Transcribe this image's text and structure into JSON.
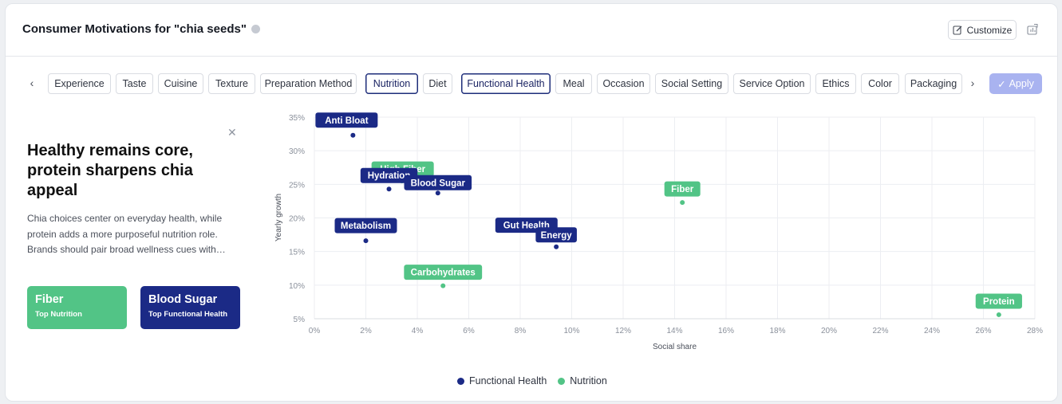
{
  "header": {
    "title": "Consumer Motivations for \"chia seeds\"",
    "customize_label": "Customize"
  },
  "tabs": [
    {
      "label": "Experience",
      "active": false
    },
    {
      "label": "Taste",
      "active": false
    },
    {
      "label": "Cuisine",
      "active": false
    },
    {
      "label": "Texture",
      "active": false
    },
    {
      "label": "Preparation Method",
      "active": false
    },
    {
      "label": "Nutrition",
      "active": true
    },
    {
      "label": "Diet",
      "active": false
    },
    {
      "label": "Functional Health",
      "active": true
    },
    {
      "label": "Meal",
      "active": false
    },
    {
      "label": "Occasion",
      "active": false
    },
    {
      "label": "Social Setting",
      "active": false
    },
    {
      "label": "Service Option",
      "active": false
    },
    {
      "label": "Ethics",
      "active": false
    },
    {
      "label": "Color",
      "active": false
    },
    {
      "label": "Packaging",
      "active": false
    }
  ],
  "apply_label": "Apply",
  "insight": {
    "title": "Healthy remains core, protein sharpens chia appeal",
    "body": "Chia choices center on everyday health, while protein adds a more purposeful nutrition role. Brands should pair broad wellness cues with…",
    "kpis": [
      {
        "value": "Fiber",
        "caption": "Top Nutrition"
      },
      {
        "value": "Blood Sugar",
        "caption": "Top Functional Health"
      }
    ]
  },
  "colors": {
    "functional_health": "#1b2a86",
    "nutrition": "#52c486",
    "accent": "#a9b3f0"
  },
  "chart_data": {
    "type": "scatter",
    "xlabel": "Social share",
    "ylabel": "Yearly growth",
    "xlim": [
      0,
      28
    ],
    "ylim": [
      5,
      35
    ],
    "xticks": [
      "0%",
      "2%",
      "4%",
      "6%",
      "8%",
      "10%",
      "12%",
      "14%",
      "16%",
      "18%",
      "20%",
      "22%",
      "24%",
      "26%",
      "28%"
    ],
    "yticks": [
      "5%",
      "10%",
      "15%",
      "20%",
      "25%",
      "30%",
      "35%"
    ],
    "grid": true,
    "legend_position": "bottom",
    "series": [
      {
        "name": "Functional Health",
        "points": [
          {
            "label": "Anti Bloat",
            "x": 1.5,
            "y": 32.3
          },
          {
            "label": "Hydration",
            "x": 2.9,
            "y": 24.3
          },
          {
            "label": "Blood Sugar",
            "x": 4.8,
            "y": 23.7
          },
          {
            "label": "Metabolism",
            "x": 2.0,
            "y": 16.6
          },
          {
            "label": "Gut Health",
            "x": 8.8,
            "y": 16.9
          },
          {
            "label": "Energy",
            "x": 9.4,
            "y": 15.7
          }
        ]
      },
      {
        "name": "Nutrition",
        "points": [
          {
            "label": "High Fiber",
            "x": 3.4,
            "y": 25.5
          },
          {
            "label": "Fiber",
            "x": 14.3,
            "y": 22.3
          },
          {
            "label": "Carbohydrates",
            "x": 5.0,
            "y": 9.9
          },
          {
            "label": "Protein",
            "x": 26.6,
            "y": 5.6
          }
        ]
      }
    ]
  }
}
